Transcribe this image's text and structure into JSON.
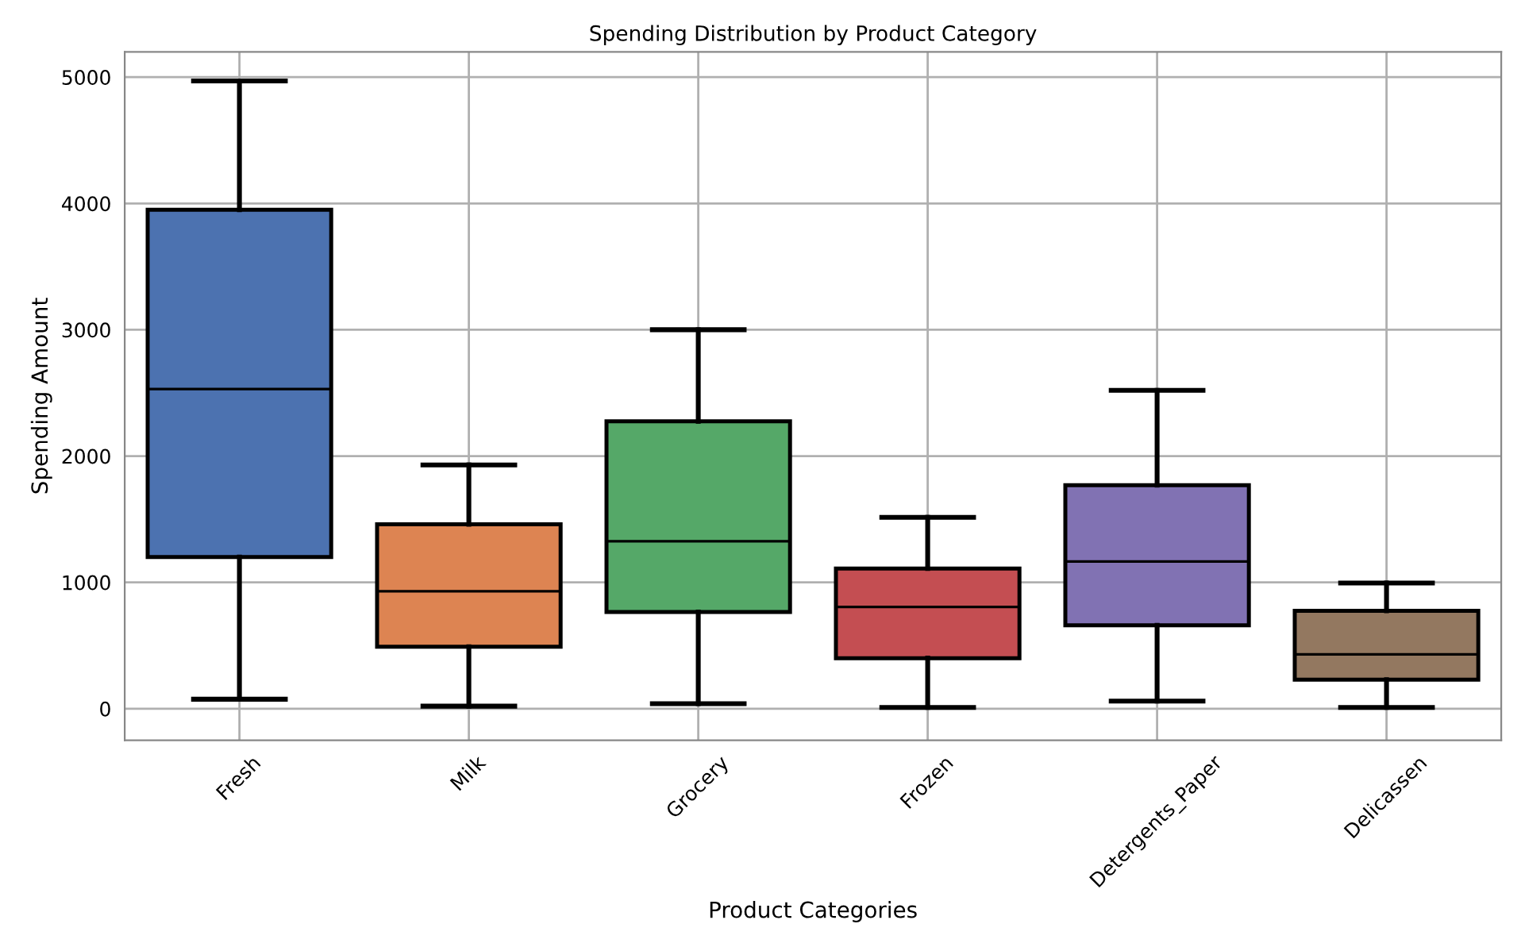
{
  "chart_data": {
    "type": "box",
    "title": "Spending Distribution by Product Category",
    "xlabel": "Product Categories",
    "ylabel": "Spending Amount",
    "categories": [
      "Fresh",
      "Milk",
      "Grocery",
      "Frozen",
      "Detergents_Paper",
      "Delicassen"
    ],
    "colors": [
      "#4c72b0",
      "#dd8452",
      "#55a868",
      "#c44e52",
      "#8172b3",
      "#937860"
    ],
    "boxes": [
      {
        "low": 75,
        "q1": 1200,
        "median": 2530,
        "q3": 3950,
        "high": 4970
      },
      {
        "low": 20,
        "q1": 490,
        "median": 930,
        "q3": 1460,
        "high": 1930
      },
      {
        "low": 40,
        "q1": 765,
        "median": 1325,
        "q3": 2275,
        "high": 3000
      },
      {
        "low": 10,
        "q1": 400,
        "median": 805,
        "q3": 1110,
        "high": 1515
      },
      {
        "low": 60,
        "q1": 660,
        "median": 1165,
        "q3": 1770,
        "high": 2520
      },
      {
        "low": 10,
        "q1": 230,
        "median": 430,
        "q3": 775,
        "high": 995
      }
    ],
    "ylim": [
      -250,
      5200
    ],
    "yticks": [
      0,
      1000,
      2000,
      3000,
      4000,
      5000
    ],
    "grid": true
  }
}
